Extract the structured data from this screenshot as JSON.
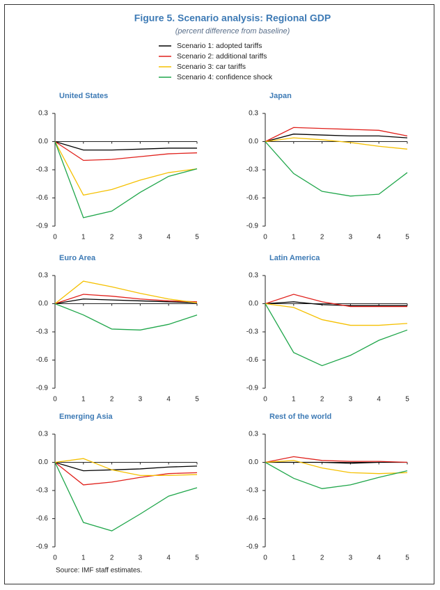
{
  "title": "Figure 5. Scenario analysis: Regional GDP",
  "subtitle": "(percent difference from baseline)",
  "source": "Source: IMF staff estimates.",
  "chart_data": [
    {
      "type": "line",
      "title": "United States",
      "x": [
        0,
        1,
        2,
        3,
        4,
        5
      ],
      "xlim": [
        0,
        5
      ],
      "xticks": [
        0,
        1,
        2,
        3,
        4,
        5
      ],
      "ylim": [
        -0.9,
        0.3
      ],
      "yticks": [
        0.3,
        {
          "value": 0,
          "label": "0.0"
        },
        -0.3,
        -0.6,
        -0.9
      ],
      "series": [
        {
          "name": "Scenario 1: adopted tariffs",
          "color": "#000000",
          "values": [
            0,
            -0.09,
            -0.09,
            -0.08,
            -0.07,
            -0.07
          ]
        },
        {
          "name": "Scenario 2: additional tariffs",
          "color": "#e0201b",
          "values": [
            0,
            -0.2,
            -0.19,
            -0.16,
            -0.13,
            -0.12
          ]
        },
        {
          "name": "Scenario 3: car tariffs",
          "color": "#f5c000",
          "values": [
            0,
            -0.57,
            -0.51,
            -0.41,
            -0.33,
            -0.29
          ]
        },
        {
          "name": "Scenario 4: confidence shock",
          "color": "#1fa64a",
          "values": [
            0,
            -0.81,
            -0.74,
            -0.54,
            -0.37,
            -0.29
          ]
        }
      ]
    },
    {
      "type": "line",
      "title": "Japan",
      "x": [
        0,
        1,
        2,
        3,
        4,
        5
      ],
      "xlim": [
        0,
        5
      ],
      "xticks": [
        0,
        1,
        2,
        3,
        4,
        5
      ],
      "ylim": [
        -0.9,
        0.3
      ],
      "yticks": [
        0.3,
        {
          "value": 0,
          "label": "0.0"
        },
        -0.3,
        -0.6,
        -0.9
      ],
      "series": [
        {
          "color": "#000000",
          "values": [
            0,
            0.08,
            0.07,
            0.06,
            0.06,
            0.04
          ]
        },
        {
          "color": "#e0201b",
          "values": [
            0,
            0.15,
            0.14,
            0.13,
            0.12,
            0.06
          ]
        },
        {
          "color": "#f5c000",
          "values": [
            0,
            0.04,
            0.02,
            -0.01,
            -0.05,
            -0.08
          ]
        },
        {
          "color": "#1fa64a",
          "values": [
            0,
            -0.34,
            -0.53,
            -0.58,
            -0.56,
            -0.33
          ]
        }
      ]
    },
    {
      "type": "line",
      "title": "Euro Area",
      "x": [
        0,
        1,
        2,
        3,
        4,
        5
      ],
      "xlim": [
        0,
        5
      ],
      "xticks": [
        0,
        1,
        2,
        3,
        4,
        5
      ],
      "ylim": [
        -0.9,
        0.3
      ],
      "yticks": [
        0.3,
        {
          "value": 0,
          "label": "0.0"
        },
        -0.3,
        -0.6,
        -0.9
      ],
      "series": [
        {
          "color": "#000000",
          "values": [
            0,
            0.05,
            0.04,
            0.03,
            0.02,
            0.01
          ]
        },
        {
          "color": "#e0201b",
          "values": [
            0,
            0.1,
            0.08,
            0.05,
            0.03,
            0.02
          ]
        },
        {
          "color": "#f5c000",
          "values": [
            0,
            0.24,
            0.18,
            0.11,
            0.05,
            0.01
          ]
        },
        {
          "color": "#1fa64a",
          "values": [
            0,
            -0.12,
            -0.27,
            -0.28,
            -0.22,
            -0.12
          ]
        }
      ]
    },
    {
      "type": "line",
      "title": "Latin America",
      "x": [
        0,
        1,
        2,
        3,
        4,
        5
      ],
      "xlim": [
        0,
        5
      ],
      "xticks": [
        0,
        1,
        2,
        3,
        4,
        5
      ],
      "ylim": [
        -0.9,
        0.3
      ],
      "yticks": [
        0.3,
        {
          "value": 0,
          "label": "0.0"
        },
        -0.3,
        -0.6,
        -0.9
      ],
      "series": [
        {
          "color": "#000000",
          "values": [
            0,
            0.02,
            -0.01,
            -0.02,
            -0.02,
            -0.02
          ]
        },
        {
          "color": "#e0201b",
          "values": [
            0,
            0.1,
            0.02,
            -0.03,
            -0.03,
            -0.03
          ]
        },
        {
          "color": "#f5c000",
          "values": [
            0,
            -0.04,
            -0.17,
            -0.23,
            -0.23,
            -0.21
          ]
        },
        {
          "color": "#1fa64a",
          "values": [
            0,
            -0.52,
            -0.66,
            -0.55,
            -0.39,
            -0.28
          ]
        }
      ]
    },
    {
      "type": "line",
      "title": "Emerging Asia",
      "x": [
        0,
        1,
        2,
        3,
        4,
        5
      ],
      "xlim": [
        0,
        5
      ],
      "xticks": [
        0,
        1,
        2,
        3,
        4,
        5
      ],
      "ylim": [
        -0.9,
        0.3
      ],
      "yticks": [
        0.3,
        {
          "value": 0,
          "label": "0.0"
        },
        -0.3,
        -0.6,
        -0.9
      ],
      "series": [
        {
          "color": "#000000",
          "values": [
            0,
            -0.09,
            -0.08,
            -0.07,
            -0.05,
            -0.04
          ]
        },
        {
          "color": "#e0201b",
          "values": [
            0,
            -0.24,
            -0.21,
            -0.16,
            -0.12,
            -0.11
          ]
        },
        {
          "color": "#f5c000",
          "values": [
            0,
            0.04,
            -0.08,
            -0.14,
            -0.14,
            -0.13
          ]
        },
        {
          "color": "#1fa64a",
          "values": [
            0,
            -0.64,
            -0.73,
            -0.55,
            -0.36,
            -0.27
          ]
        }
      ]
    },
    {
      "type": "line",
      "title": "Rest of the world",
      "x": [
        0,
        1,
        2,
        3,
        4,
        5
      ],
      "xlim": [
        0,
        5
      ],
      "xticks": [
        0,
        1,
        2,
        3,
        4,
        5
      ],
      "ylim": [
        -0.9,
        0.3
      ],
      "yticks": [
        0.3,
        {
          "value": 0,
          "label": "0.0"
        },
        -0.3,
        -0.6,
        -0.9
      ],
      "series": [
        {
          "color": "#000000",
          "values": [
            0,
            0,
            0,
            -0.01,
            0,
            0
          ]
        },
        {
          "color": "#e0201b",
          "values": [
            0,
            0.06,
            0.02,
            0.01,
            0.01,
            0
          ]
        },
        {
          "color": "#f5c000",
          "values": [
            0,
            0.02,
            -0.06,
            -0.11,
            -0.12,
            -0.11
          ]
        },
        {
          "color": "#1fa64a",
          "values": [
            0,
            -0.17,
            -0.28,
            -0.24,
            -0.16,
            -0.09
          ]
        }
      ]
    }
  ]
}
